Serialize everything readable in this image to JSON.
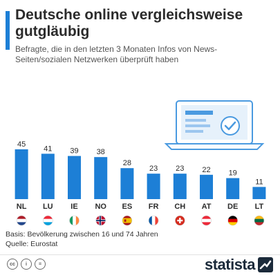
{
  "header": {
    "title": "Deutsche online vergleichsweise gutgläubig",
    "subtitle": "Befragte, die in den letzten 3 Monaten Infos von News-Seiten/sozialen Netzwerken überprüft haben"
  },
  "chart_data": {
    "type": "bar",
    "categories": [
      "NL",
      "LU",
      "IE",
      "NO",
      "ES",
      "FR",
      "CH",
      "AT",
      "DE",
      "LT"
    ],
    "values": [
      45,
      41,
      39,
      38,
      28,
      23,
      23,
      22,
      19,
      11
    ],
    "ylim": [
      0,
      45
    ],
    "grid": false,
    "legend": "none"
  },
  "flags": [
    {
      "code": "NL",
      "kind": "h3",
      "colors": [
        "#ae1c28",
        "#ffffff",
        "#21468b"
      ]
    },
    {
      "code": "LU",
      "kind": "h3",
      "colors": [
        "#ed2939",
        "#ffffff",
        "#00a1de"
      ]
    },
    {
      "code": "IE",
      "kind": "v3",
      "colors": [
        "#169b62",
        "#ffffff",
        "#ff883e"
      ]
    },
    {
      "code": "NO",
      "kind": "cross",
      "colors": [
        "#ba0c2f",
        "#ffffff",
        "#00205b"
      ]
    },
    {
      "code": "ES",
      "kind": "es",
      "colors": [
        "#aa151b",
        "#f1bf00"
      ]
    },
    {
      "code": "FR",
      "kind": "v3",
      "colors": [
        "#0055a4",
        "#ffffff",
        "#ef4135"
      ]
    },
    {
      "code": "CH",
      "kind": "ch",
      "colors": [
        "#d52b1e",
        "#ffffff"
      ]
    },
    {
      "code": "AT",
      "kind": "h3",
      "colors": [
        "#ed2939",
        "#ffffff",
        "#ed2939"
      ]
    },
    {
      "code": "DE",
      "kind": "h3",
      "colors": [
        "#000000",
        "#dd0000",
        "#ffce00"
      ]
    },
    {
      "code": "LT",
      "kind": "h3",
      "colors": [
        "#fdb913",
        "#006a44",
        "#c1272d"
      ]
    }
  ],
  "colors": {
    "bar": "#1d7fd6",
    "accent": "#1d7fd6",
    "illustration": "#4a9ae0"
  },
  "footer": {
    "basis": "Basis: Bevölkerung zwischen 16 und 74 Jahren",
    "source": "Quelle: Eurostat",
    "brand": "statista"
  },
  "license_icons": [
    "cc",
    "i",
    "="
  ]
}
